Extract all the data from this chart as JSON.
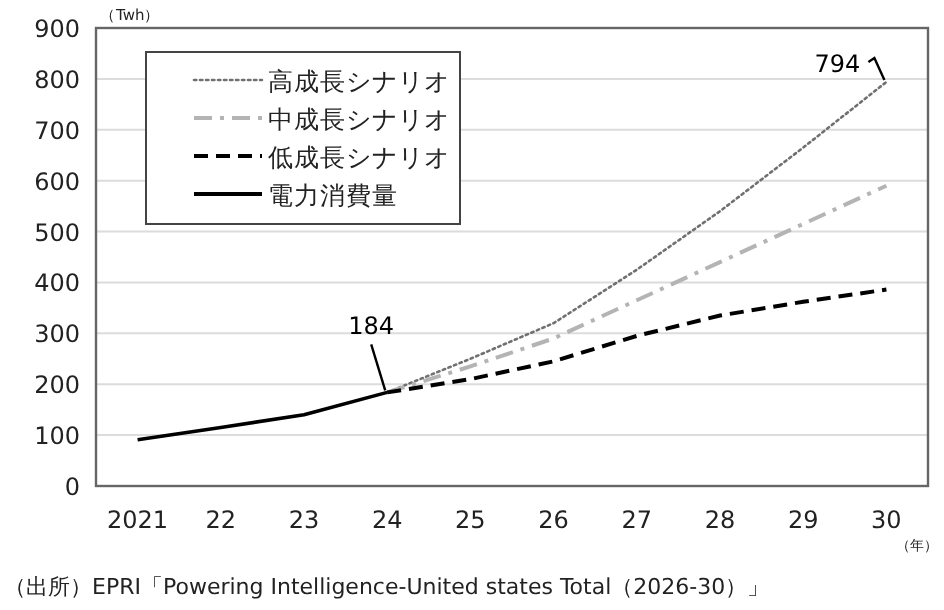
{
  "chart_data": {
    "type": "line",
    "xlabel": "（年）",
    "ylabel": "（Twh）",
    "categories": [
      "2021",
      "22",
      "23",
      "24",
      "25",
      "26",
      "27",
      "28",
      "29",
      "30"
    ],
    "series": [
      {
        "name": "高成長シナリオ",
        "color": "#707070",
        "line_style": "dotted",
        "values": [
          null,
          null,
          null,
          184,
          250,
          320,
          425,
          540,
          665,
          794
        ]
      },
      {
        "name": "中成長シナリオ",
        "color": "#b4b4b4",
        "line_style": "dashdot",
        "values": [
          null,
          null,
          null,
          184,
          235,
          290,
          365,
          440,
          515,
          590
        ]
      },
      {
        "name": "低成長シナリオ",
        "color": "#000000",
        "line_style": "dashed",
        "values": [
          null,
          null,
          null,
          184,
          210,
          245,
          295,
          335,
          362,
          386
        ]
      },
      {
        "name": "電力消費量",
        "color": "#000000",
        "line_style": "solid",
        "values": [
          91,
          115,
          140,
          184,
          null,
          null,
          null,
          null,
          null,
          null
        ]
      }
    ],
    "ylim": [
      0,
      900
    ],
    "yticks": [
      0,
      100,
      200,
      300,
      400,
      500,
      600,
      700,
      800,
      900
    ],
    "grid": "y",
    "legend": "top left",
    "marker": "none",
    "annotations": [
      {
        "text": "184",
        "x": "24",
        "y": 184
      },
      {
        "text": "794",
        "x": "30",
        "y": 794
      },
      "（出所）EPRI「Powering Intelligence-United states Total（2026-30）」"
    ]
  }
}
